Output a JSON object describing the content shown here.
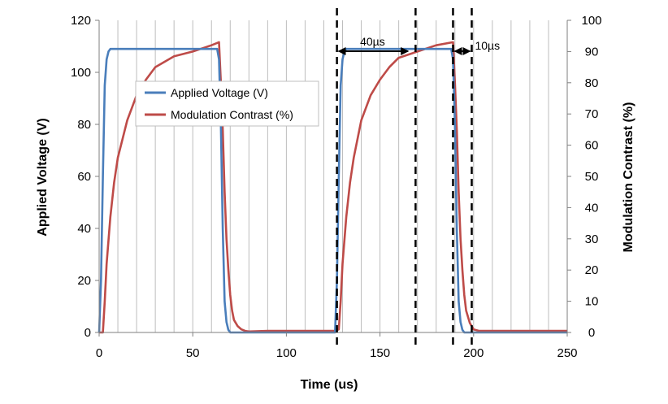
{
  "chart_data": {
    "type": "line",
    "title": "",
    "xlabel": "Time (us)",
    "ylabel_left": "Applied Voltage (V)",
    "ylabel_right": "Modulation Contrast (%)",
    "xlim": [
      0,
      250
    ],
    "ylim_left": [
      0,
      120
    ],
    "ylim_right": [
      0,
      100
    ],
    "x_ticks": [
      0,
      50,
      100,
      150,
      200,
      250
    ],
    "y_left_ticks": [
      0,
      20,
      40,
      60,
      80,
      100,
      120
    ],
    "y_right_ticks": [
      0,
      10,
      20,
      30,
      40,
      50,
      60,
      70,
      80,
      90,
      100
    ],
    "grid": "vertical lines every 10 us",
    "legend": {
      "placement": "upper-left inside plot",
      "entries": [
        "Applied Voltage (V)",
        "Modulation Contrast (%)"
      ]
    },
    "series": [
      {
        "name": "Applied Voltage (V)",
        "axis": "left",
        "color": "#4a7ebb",
        "x": [
          0,
          1,
          2,
          3,
          4,
          5,
          6,
          8,
          10,
          30,
          63,
          64,
          65,
          66,
          67,
          68,
          69,
          70,
          75,
          100,
          126,
          127,
          128,
          129,
          130,
          131,
          132,
          134,
          136,
          160,
          188,
          189,
          190,
          191,
          192,
          193,
          194,
          195,
          200,
          250
        ],
        "y": [
          0,
          20,
          60,
          95,
          105,
          108,
          109,
          109,
          109,
          109,
          109,
          105,
          80,
          40,
          12,
          4,
          1,
          0,
          0,
          0,
          0,
          20,
          60,
          95,
          105,
          108,
          109,
          109,
          109,
          109,
          109,
          105,
          80,
          40,
          12,
          4,
          1,
          0,
          0,
          0
        ]
      },
      {
        "name": "Modulation Contrast (%)",
        "axis": "right",
        "color": "#be4b48",
        "x": [
          0,
          2,
          3,
          4,
          6,
          8,
          10,
          15,
          20,
          25,
          30,
          40,
          50,
          60,
          64,
          65,
          66,
          67,
          68,
          69,
          70,
          71,
          72,
          74,
          76,
          78,
          80,
          90,
          100,
          110,
          120,
          126,
          128,
          129,
          130,
          132,
          134,
          136,
          140,
          145,
          150,
          155,
          160,
          170,
          180,
          189,
          190,
          191,
          192,
          193,
          194,
          195,
          196,
          198,
          200,
          203,
          210,
          250
        ],
        "y": [
          0,
          0,
          10,
          22,
          37,
          48,
          56,
          68,
          76,
          81,
          85,
          88.5,
          90,
          92,
          93,
          80,
          65,
          45,
          30,
          20,
          12,
          7,
          4,
          2,
          1,
          0.5,
          0.3,
          0.5,
          0.5,
          0.5,
          0.5,
          0.5,
          1,
          10,
          22,
          37,
          48,
          56,
          68,
          76,
          81,
          85,
          88,
          90,
          92,
          93,
          80,
          65,
          45,
          30,
          20,
          12,
          7,
          3,
          1,
          0.5,
          0.5,
          0.5
        ]
      }
    ],
    "annotations": {
      "dashed_lines_x": [
        127,
        169,
        189,
        199
      ],
      "arrow_1": {
        "from": 127,
        "to": 165,
        "y_left": 105,
        "label": "40µs"
      },
      "arrow_2": {
        "from": 189,
        "to": 199,
        "y_left": 105,
        "label": "10µs"
      }
    }
  }
}
